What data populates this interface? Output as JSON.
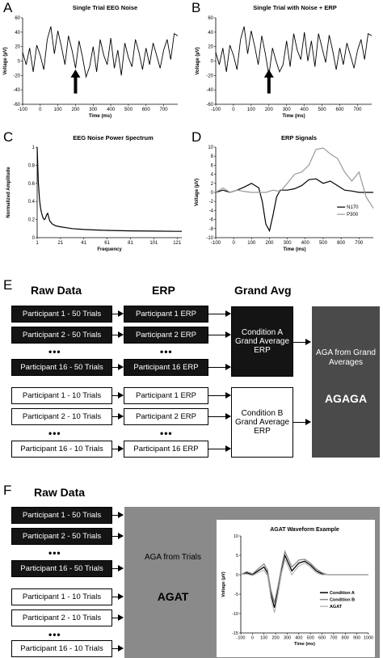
{
  "panels": {
    "A": {
      "letter": "A",
      "title": "Single Trial EEG Noise"
    },
    "B": {
      "letter": "B",
      "title": "Single Trial with Noise + ERP"
    },
    "C": {
      "letter": "C",
      "title": "EEG Noise Power Spectrum"
    },
    "D": {
      "letter": "D",
      "title": "ERP Signals"
    },
    "E": {
      "letter": "E"
    },
    "F": {
      "letter": "F"
    }
  },
  "chart_data": [
    {
      "id": "A",
      "type": "line",
      "title": "Single Trial EEG Noise",
      "xlabel": "Time (ms)",
      "ylabel": "Voltage (µV)",
      "xlim": [
        -100,
        780
      ],
      "ylim": [
        -60,
        60
      ],
      "xticks": [
        -100,
        0,
        100,
        200,
        300,
        400,
        500,
        600,
        700
      ],
      "yticks": [
        -60,
        -40,
        -20,
        0,
        20,
        40,
        60
      ],
      "annotation": "arrow at 200 ms",
      "x": [
        -100,
        -80,
        -60,
        -40,
        -20,
        0,
        20,
        40,
        60,
        80,
        100,
        120,
        140,
        160,
        180,
        200,
        220,
        240,
        260,
        280,
        300,
        320,
        340,
        360,
        380,
        400,
        420,
        440,
        460,
        480,
        500,
        520,
        540,
        560,
        580,
        600,
        620,
        640,
        660,
        680,
        700,
        720,
        740,
        760,
        780
      ],
      "y": [
        12,
        -5,
        18,
        -15,
        22,
        8,
        -12,
        30,
        48,
        10,
        42,
        20,
        -5,
        35,
        15,
        -10,
        28,
        5,
        -22,
        -8,
        20,
        -15,
        30,
        8,
        -5,
        32,
        -10,
        15,
        -20,
        25,
        5,
        -8,
        30,
        12,
        -12,
        18,
        -5,
        25,
        8,
        -10,
        15,
        30,
        2,
        38,
        35
      ]
    },
    {
      "id": "B",
      "type": "line",
      "title": "Single Trial with Noise + ERP",
      "xlabel": "Time (ms)",
      "ylabel": "Voltage (µV)",
      "xlim": [
        -100,
        780
      ],
      "ylim": [
        -60,
        60
      ],
      "xticks": [
        -100,
        0,
        100,
        200,
        300,
        400,
        500,
        600,
        700
      ],
      "yticks": [
        -60,
        -40,
        -20,
        0,
        20,
        40,
        60
      ],
      "annotation": "arrow at 200 ms",
      "x": [
        -100,
        -80,
        -60,
        -40,
        -20,
        0,
        20,
        40,
        60,
        80,
        100,
        120,
        140,
        160,
        180,
        200,
        220,
        240,
        260,
        280,
        300,
        320,
        340,
        360,
        380,
        400,
        420,
        440,
        460,
        480,
        500,
        520,
        540,
        560,
        580,
        600,
        620,
        640,
        660,
        680,
        700,
        720,
        740,
        760,
        780
      ],
      "y": [
        12,
        -5,
        18,
        -15,
        22,
        8,
        -12,
        30,
        48,
        10,
        42,
        20,
        -5,
        35,
        10,
        -20,
        18,
        0,
        -15,
        -5,
        28,
        -8,
        38,
        15,
        2,
        40,
        0,
        28,
        -8,
        38,
        18,
        -2,
        36,
        14,
        -12,
        18,
        -5,
        25,
        8,
        -10,
        15,
        30,
        2,
        38,
        35
      ]
    },
    {
      "id": "C",
      "type": "line",
      "title": "EEG Noise Power Spectrum",
      "xlabel": "Frequency",
      "ylabel": "Normalized Amplitude",
      "xlim": [
        1,
        125
      ],
      "ylim": [
        0,
        1
      ],
      "xticks": [
        1,
        21,
        41,
        61,
        81,
        101,
        121
      ],
      "yticks": [
        0,
        0.2,
        0.4,
        0.6,
        0.8,
        1
      ],
      "x": [
        1,
        2,
        3,
        4,
        5,
        6,
        7,
        8,
        9,
        10,
        11,
        12,
        14,
        17,
        21,
        26,
        31,
        41,
        51,
        61,
        81,
        101,
        121,
        125
      ],
      "y": [
        1.0,
        0.62,
        0.42,
        0.32,
        0.26,
        0.22,
        0.2,
        0.21,
        0.25,
        0.27,
        0.22,
        0.18,
        0.15,
        0.13,
        0.12,
        0.11,
        0.1,
        0.09,
        0.085,
        0.08,
        0.075,
        0.072,
        0.07,
        0.07
      ]
    },
    {
      "id": "D",
      "type": "line",
      "title": "ERP Signals",
      "xlabel": "Time (ms)",
      "ylabel": "Voltage (µV)",
      "xlim": [
        -100,
        780
      ],
      "ylim": [
        -10,
        10
      ],
      "xticks": [
        -100,
        0,
        100,
        200,
        300,
        400,
        500,
        600,
        700
      ],
      "yticks": [
        -10,
        -8,
        -6,
        -4,
        -2,
        0,
        2,
        4,
        6,
        8,
        10
      ],
      "legend": "bottom-right",
      "series": [
        {
          "name": "N170",
          "color": "#000000",
          "x": [
            -100,
            -60,
            -20,
            20,
            60,
            100,
            140,
            160,
            180,
            200,
            220,
            240,
            260,
            300,
            340,
            380,
            420,
            460,
            500,
            540,
            580,
            620,
            660,
            700,
            740,
            780
          ],
          "y": [
            0,
            0.5,
            0,
            0.5,
            1.2,
            2,
            1,
            -2,
            -7,
            -8.5,
            -5,
            -1,
            0.5,
            0.5,
            0.8,
            1.5,
            2.8,
            3,
            2,
            2.5,
            1.5,
            0.5,
            0.3,
            0,
            0,
            0
          ]
        },
        {
          "name": "P300",
          "color": "#999999",
          "x": [
            -100,
            -60,
            -20,
            20,
            60,
            100,
            140,
            180,
            220,
            260,
            300,
            340,
            380,
            420,
            460,
            500,
            540,
            580,
            620,
            660,
            700,
            740,
            780
          ],
          "y": [
            0,
            1,
            0,
            0.5,
            0.2,
            0,
            0,
            0,
            0.5,
            0.2,
            2,
            4,
            4.5,
            6,
            9.5,
            9.8,
            8.5,
            7.5,
            4.5,
            2.5,
            4.5,
            -1,
            -3.5
          ]
        }
      ]
    },
    {
      "id": "F-inset",
      "type": "line",
      "title": "AGAT Waveform Example",
      "xlabel": "Time (ms)",
      "ylabel": "Voltage (µV)",
      "xlim": [
        -100,
        1000
      ],
      "ylim": [
        -15,
        10
      ],
      "xticks": [
        -100,
        0,
        100,
        200,
        300,
        400,
        500,
        600,
        700,
        800,
        900,
        1000
      ],
      "yticks": [
        -15,
        -10,
        -5,
        0,
        5,
        10
      ],
      "legend": "bottom-right",
      "series": [
        {
          "name": "Condition A",
          "color": "#000000",
          "x": [
            -100,
            -50,
            0,
            50,
            100,
            130,
            160,
            190,
            220,
            250,
            280,
            310,
            340,
            370,
            400,
            450,
            500,
            550,
            600,
            650,
            700,
            800,
            900,
            1000
          ],
          "y": [
            0,
            0.5,
            0,
            1,
            2,
            0.5,
            -5,
            -8.5,
            -4,
            1,
            5,
            3,
            1,
            2,
            3,
            3.5,
            2.5,
            1,
            0.2,
            0,
            0,
            0,
            0,
            0
          ]
        },
        {
          "name": "Condition B",
          "color": "#888888",
          "x": [
            -100,
            -50,
            0,
            50,
            100,
            130,
            160,
            190,
            220,
            250,
            280,
            310,
            340,
            370,
            400,
            450,
            500,
            550,
            600,
            650,
            700,
            800,
            900,
            1000
          ],
          "y": [
            0,
            0.8,
            0.2,
            1.5,
            2.8,
            1.2,
            -4,
            -7.2,
            -3,
            1.8,
            6,
            4,
            2,
            2.8,
            3.8,
            4,
            3,
            1.5,
            0.5,
            0,
            0,
            0,
            0,
            0
          ]
        },
        {
          "name": "AGAT",
          "color": "#bbbbbb",
          "x": [
            -100,
            -50,
            0,
            50,
            100,
            130,
            160,
            190,
            220,
            250,
            280,
            310,
            340,
            370,
            400,
            450,
            500,
            550,
            600,
            650,
            700,
            800,
            900,
            1000
          ],
          "y": [
            0,
            0.2,
            -0.2,
            0.5,
            1.2,
            -0.2,
            -6,
            -9.8,
            -5,
            0.2,
            4,
            2,
            0,
            1.2,
            2.2,
            3,
            2,
            0.5,
            0,
            0,
            0,
            0,
            0,
            0
          ]
        }
      ]
    }
  ],
  "diagramE": {
    "headers": {
      "raw": "Raw Data",
      "erp": "ERP",
      "grand": "Grand Avg"
    },
    "rawA": [
      "Participant 1 - 50 Trials",
      "Participant 2 - 50 Trials",
      "Participant 16 - 50 Trials"
    ],
    "erpA": [
      "Participant 1 ERP",
      "Participant 2 ERP",
      "Participant 16 ERP"
    ],
    "rawB": [
      "Participant 1 - 10 Trials",
      "Participant 2 - 10 Trials",
      "Participant 16 - 10 Trials"
    ],
    "erpB": [
      "Participant 1 ERP",
      "Participant 2 ERP",
      "Participant 16 ERP"
    ],
    "dots": "•••",
    "grandA": "Condition A Grand Average ERP",
    "grandB": "Condition B Grand Average ERP",
    "aga_sub": "AGA from Grand Averages",
    "aga_main": "AGAGA"
  },
  "diagramF": {
    "header": "Raw Data",
    "rawA": [
      "Participant 1 - 50 Trials",
      "Participant 2 - 50 Trials",
      "Participant 16 - 50 Trials"
    ],
    "rawB": [
      "Participant 1 - 10 Trials",
      "Participant 2 - 10 Trials",
      "Participant 16 - 10 Trials"
    ],
    "dots": "•••",
    "aga_sub": "AGA from Trials",
    "aga_main": "AGAT"
  },
  "colors": {
    "dark_box": "#141414",
    "aga_e": "#4a4a4a",
    "aga_f": "#8a8a8a"
  }
}
